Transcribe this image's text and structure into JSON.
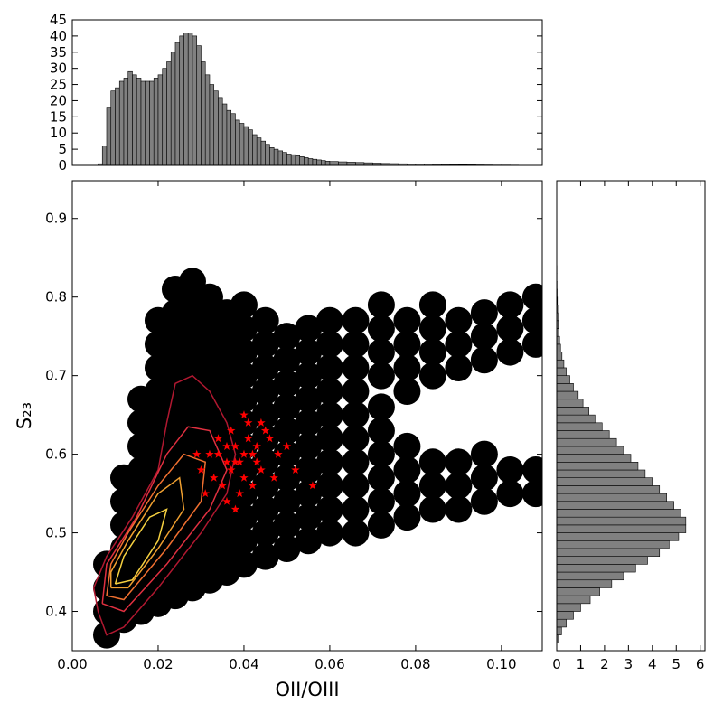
{
  "chart_data": [
    {
      "type": "histogram",
      "bins": [
        0.006,
        0.007,
        0.008,
        0.009,
        0.01,
        0.011,
        0.012,
        0.013,
        0.014,
        0.015,
        0.016,
        0.017,
        0.018,
        0.019,
        0.02,
        0.021,
        0.022,
        0.023,
        0.024,
        0.025,
        0.026,
        0.027,
        0.028,
        0.029,
        0.03,
        0.031,
        0.032,
        0.033,
        0.034,
        0.035,
        0.036,
        0.037,
        0.038,
        0.039,
        0.04,
        0.041,
        0.042,
        0.043,
        0.044,
        0.045,
        0.046,
        0.047,
        0.048,
        0.049,
        0.05,
        0.051,
        0.052,
        0.053,
        0.054,
        0.055,
        0.056,
        0.057,
        0.058,
        0.059,
        0.06,
        0.062,
        0.064,
        0.066,
        0.068,
        0.07,
        0.072,
        0.074,
        0.076,
        0.078,
        0.08,
        0.082,
        0.084,
        0.086,
        0.088,
        0.09,
        0.092,
        0.094,
        0.096,
        0.098,
        0.1,
        0.102,
        0.104,
        0.106
      ],
      "values": [
        0.5,
        6,
        18,
        23,
        24,
        26,
        27,
        29,
        28,
        27,
        26,
        26,
        26,
        27,
        28,
        30,
        32,
        35,
        38,
        40,
        41,
        41,
        40,
        37,
        32,
        28,
        25,
        23,
        21,
        19,
        17,
        16,
        14,
        13,
        12,
        11,
        9.5,
        8.5,
        7.5,
        6.5,
        5.5,
        5,
        4.5,
        4,
        3.5,
        3.3,
        3,
        2.7,
        2.4,
        2.1,
        1.9,
        1.7,
        1.5,
        1.3,
        1.2,
        1.1,
        1.0,
        0.9,
        0.8,
        0.7,
        0.6,
        0.55,
        0.5,
        0.45,
        0.4,
        0.35,
        0.3,
        0.27,
        0.24,
        0.2,
        0.18,
        0.15,
        0.13,
        0.1,
        0.1,
        0.08,
        0.05
      ],
      "color": "#808080",
      "xlim": [
        0,
        0.1095
      ],
      "ylim": [
        0,
        45
      ],
      "yticks": [
        0,
        5,
        10,
        15,
        20,
        25,
        30,
        35,
        40,
        45
      ]
    },
    {
      "type": "scatter",
      "xlabel": "OII/OIII",
      "ylabel": "S₂₃",
      "xlim": [
        0,
        0.1095
      ],
      "ylim": [
        0.35,
        0.948
      ],
      "xticks": [
        {
          "value": 0,
          "label": "0.00"
        },
        {
          "value": 0.02,
          "label": "0.02"
        },
        {
          "value": 0.04,
          "label": "0.04"
        },
        {
          "value": 0.06,
          "label": "0.06"
        },
        {
          "value": 0.08,
          "label": "0.08"
        },
        {
          "value": 0.1,
          "label": "0.10"
        }
      ],
      "yticks": [
        0.4,
        0.5,
        0.6,
        0.7,
        0.8,
        0.9
      ],
      "series": [
        {
          "color": "#000000",
          "marker": "dot",
          "x": [
            0.008,
            0.008,
            0.008,
            0.008,
            0.012,
            0.012,
            0.012,
            0.012,
            0.012,
            0.012,
            0.012,
            0.016,
            0.016,
            0.016,
            0.016,
            0.016,
            0.016,
            0.016,
            0.016,
            0.016,
            0.016,
            0.02,
            0.02,
            0.02,
            0.02,
            0.02,
            0.02,
            0.02,
            0.02,
            0.02,
            0.02,
            0.02,
            0.02,
            0.02,
            0.024,
            0.024,
            0.024,
            0.024,
            0.024,
            0.024,
            0.024,
            0.024,
            0.024,
            0.024,
            0.024,
            0.024,
            0.024,
            0.024,
            0.028,
            0.028,
            0.028,
            0.028,
            0.028,
            0.028,
            0.028,
            0.028,
            0.028,
            0.028,
            0.028,
            0.028,
            0.028,
            0.028,
            0.032,
            0.032,
            0.032,
            0.032,
            0.032,
            0.032,
            0.032,
            0.032,
            0.032,
            0.032,
            0.032,
            0.032,
            0.032,
            0.036,
            0.036,
            0.036,
            0.036,
            0.036,
            0.036,
            0.036,
            0.036,
            0.036,
            0.036,
            0.036,
            0.036,
            0.04,
            0.04,
            0.04,
            0.04,
            0.04,
            0.04,
            0.04,
            0.04,
            0.04,
            0.04,
            0.04,
            0.04,
            0.045,
            0.045,
            0.045,
            0.045,
            0.045,
            0.045,
            0.045,
            0.045,
            0.045,
            0.045,
            0.045,
            0.05,
            0.05,
            0.05,
            0.05,
            0.05,
            0.05,
            0.05,
            0.05,
            0.05,
            0.05,
            0.055,
            0.055,
            0.055,
            0.055,
            0.055,
            0.055,
            0.055,
            0.055,
            0.055,
            0.055,
            0.06,
            0.06,
            0.06,
            0.06,
            0.06,
            0.06,
            0.06,
            0.06,
            0.06,
            0.06,
            0.066,
            0.066,
            0.066,
            0.066,
            0.066,
            0.066,
            0.066,
            0.066,
            0.066,
            0.066,
            0.072,
            0.072,
            0.072,
            0.072,
            0.072,
            0.072,
            0.072,
            0.072,
            0.072,
            0.072,
            0.078,
            0.078,
            0.078,
            0.078,
            0.078,
            0.078,
            0.078,
            0.078,
            0.084,
            0.084,
            0.084,
            0.084,
            0.084,
            0.084,
            0.084,
            0.09,
            0.09,
            0.09,
            0.09,
            0.09,
            0.09,
            0.096,
            0.096,
            0.096,
            0.096,
            0.096,
            0.096,
            0.102,
            0.102,
            0.102,
            0.102,
            0.102,
            0.108,
            0.108,
            0.108,
            0.108,
            0.108
          ],
          "values": [
            0.37,
            0.4,
            0.43,
            0.46,
            0.39,
            0.42,
            0.45,
            0.48,
            0.51,
            0.54,
            0.57,
            0.4,
            0.43,
            0.46,
            0.49,
            0.52,
            0.55,
            0.58,
            0.61,
            0.64,
            0.67,
            0.41,
            0.44,
            0.47,
            0.5,
            0.53,
            0.56,
            0.59,
            0.62,
            0.65,
            0.68,
            0.71,
            0.74,
            0.77,
            0.42,
            0.45,
            0.48,
            0.51,
            0.54,
            0.57,
            0.6,
            0.63,
            0.66,
            0.69,
            0.72,
            0.75,
            0.78,
            0.81,
            0.43,
            0.46,
            0.49,
            0.52,
            0.55,
            0.58,
            0.61,
            0.64,
            0.67,
            0.7,
            0.73,
            0.76,
            0.79,
            0.82,
            0.44,
            0.47,
            0.5,
            0.53,
            0.56,
            0.59,
            0.62,
            0.65,
            0.68,
            0.71,
            0.74,
            0.77,
            0.8,
            0.45,
            0.48,
            0.51,
            0.54,
            0.57,
            0.6,
            0.63,
            0.66,
            0.69,
            0.72,
            0.75,
            0.78,
            0.46,
            0.49,
            0.52,
            0.55,
            0.58,
            0.61,
            0.64,
            0.67,
            0.7,
            0.73,
            0.76,
            0.79,
            0.47,
            0.5,
            0.53,
            0.56,
            0.59,
            0.62,
            0.65,
            0.68,
            0.71,
            0.74,
            0.77,
            0.48,
            0.51,
            0.54,
            0.57,
            0.6,
            0.63,
            0.66,
            0.69,
            0.72,
            0.75,
            0.49,
            0.52,
            0.55,
            0.58,
            0.61,
            0.64,
            0.67,
            0.7,
            0.73,
            0.76,
            0.5,
            0.53,
            0.56,
            0.59,
            0.62,
            0.65,
            0.68,
            0.71,
            0.74,
            0.77,
            0.5,
            0.53,
            0.56,
            0.59,
            0.62,
            0.65,
            0.68,
            0.71,
            0.74,
            0.77,
            0.51,
            0.54,
            0.57,
            0.6,
            0.63,
            0.66,
            0.7,
            0.73,
            0.76,
            0.79,
            0.52,
            0.55,
            0.58,
            0.61,
            0.68,
            0.71,
            0.74,
            0.77,
            0.53,
            0.56,
            0.59,
            0.7,
            0.73,
            0.76,
            0.79,
            0.53,
            0.56,
            0.59,
            0.71,
            0.74,
            0.77,
            0.54,
            0.57,
            0.6,
            0.72,
            0.75,
            0.78,
            0.55,
            0.58,
            0.73,
            0.76,
            0.79,
            0.55,
            0.58,
            0.74,
            0.77,
            0.8
          ]
        },
        {
          "color": "#b01830",
          "marker": "line",
          "x": [
            0.006,
            0.008,
            0.012,
            0.02,
            0.03,
            0.036,
            0.038,
            0.036,
            0.032,
            0.028,
            0.024,
            0.022,
            0.02,
            0.014,
            0.008,
            0.005,
            0.006
          ],
          "values": [
            0.4,
            0.37,
            0.38,
            0.43,
            0.5,
            0.55,
            0.6,
            0.64,
            0.68,
            0.7,
            0.69,
            0.64,
            0.58,
            0.52,
            0.47,
            0.43,
            0.4
          ]
        },
        {
          "color": "#e03040",
          "marker": "line",
          "x": [
            0.007,
            0.012,
            0.022,
            0.032,
            0.036,
            0.032,
            0.027,
            0.022,
            0.015,
            0.008,
            0.007
          ],
          "values": [
            0.41,
            0.4,
            0.46,
            0.53,
            0.58,
            0.63,
            0.635,
            0.6,
            0.52,
            0.46,
            0.41
          ]
        },
        {
          "color": "#f07030",
          "marker": "line",
          "x": [
            0.008,
            0.012,
            0.022,
            0.03,
            0.031,
            0.026,
            0.02,
            0.013,
            0.009,
            0.008
          ],
          "values": [
            0.42,
            0.415,
            0.48,
            0.54,
            0.59,
            0.6,
            0.56,
            0.5,
            0.46,
            0.42
          ]
        },
        {
          "color": "#f0a030",
          "marker": "line",
          "x": [
            0.009,
            0.013,
            0.02,
            0.026,
            0.025,
            0.02,
            0.013,
            0.009,
            0.009
          ],
          "values": [
            0.43,
            0.43,
            0.48,
            0.53,
            0.57,
            0.55,
            0.49,
            0.45,
            0.43
          ]
        },
        {
          "color": "#f5d040",
          "marker": "line",
          "x": [
            0.01,
            0.014,
            0.02,
            0.022,
            0.018,
            0.012,
            0.01
          ],
          "values": [
            0.435,
            0.44,
            0.49,
            0.53,
            0.52,
            0.47,
            0.435
          ]
        },
        {
          "color": "#ff0000",
          "marker": "star",
          "x": [
            0.03,
            0.032,
            0.034,
            0.036,
            0.038,
            0.04,
            0.042,
            0.044,
            0.046,
            0.035,
            0.037,
            0.039,
            0.041,
            0.043,
            0.033,
            0.036,
            0.04,
            0.045,
            0.048,
            0.05,
            0.052,
            0.056,
            0.031,
            0.029,
            0.038,
            0.042,
            0.044,
            0.037,
            0.039,
            0.041,
            0.034,
            0.047,
            0.036,
            0.04,
            0.043,
            0.038
          ],
          "values": [
            0.58,
            0.6,
            0.62,
            0.59,
            0.61,
            0.57,
            0.6,
            0.58,
            0.62,
            0.56,
            0.63,
            0.55,
            0.64,
            0.59,
            0.57,
            0.61,
            0.6,
            0.63,
            0.6,
            0.61,
            0.58,
            0.56,
            0.55,
            0.6,
            0.53,
            0.56,
            0.64,
            0.58,
            0.59,
            0.62,
            0.6,
            0.57,
            0.54,
            0.65,
            0.61,
            0.59
          ]
        }
      ]
    },
    {
      "type": "histogram",
      "orientation": "horizontal",
      "color": "#808080",
      "bins": [
        0.36,
        0.37,
        0.38,
        0.39,
        0.4,
        0.41,
        0.42,
        0.43,
        0.44,
        0.45,
        0.46,
        0.47,
        0.48,
        0.49,
        0.5,
        0.51,
        0.52,
        0.53,
        0.54,
        0.55,
        0.56,
        0.57,
        0.58,
        0.59,
        0.6,
        0.61,
        0.62,
        0.63,
        0.64,
        0.65,
        0.66,
        0.67,
        0.68,
        0.69,
        0.7,
        0.71,
        0.72,
        0.73,
        0.74,
        0.75,
        0.76,
        0.77,
        0.78,
        0.79,
        0.8,
        0.81,
        0.82,
        0.83,
        0.84
      ],
      "values": [
        0.05,
        0.2,
        0.4,
        0.7,
        1.0,
        1.4,
        1.8,
        2.3,
        2.8,
        3.3,
        3.8,
        4.3,
        4.7,
        5.1,
        5.4,
        5.4,
        5.2,
        4.9,
        4.6,
        4.3,
        4.0,
        3.7,
        3.4,
        3.1,
        2.8,
        2.5,
        2.2,
        1.9,
        1.6,
        1.35,
        1.1,
        0.9,
        0.7,
        0.55,
        0.4,
        0.3,
        0.22,
        0.16,
        0.12,
        0.09,
        0.07,
        0.05,
        0.04,
        0.03,
        0.02,
        0.015,
        0.01,
        0.01
      ],
      "xlim": [
        0,
        6.2
      ],
      "ylim": [
        0.35,
        0.948
      ],
      "xticks": [
        0,
        1,
        2,
        3,
        4,
        5,
        6
      ]
    }
  ]
}
